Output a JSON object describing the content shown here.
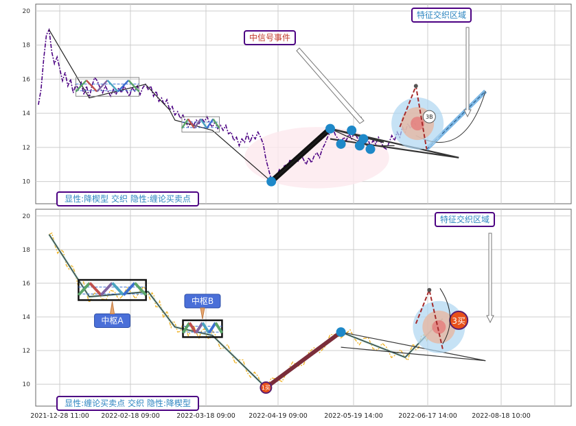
{
  "colors": {
    "panel_border": "#666666",
    "grid": "#cccccc",
    "top_price": "#4b0082",
    "bottom_price": "#f0b429",
    "stroke_line": "#222222",
    "node_blue": "#1e88c8",
    "label_border": "#4b0082",
    "label_text": "#2e86c1",
    "label_text_red": "#c0392b",
    "pivot_fill": "#4a6fd8",
    "buy_fill": "#e8501a",
    "dash_red": "#a52a2a"
  },
  "chart_data": [
    {
      "type": "line",
      "panel": "top",
      "ylim": [
        8.7,
        20.4
      ],
      "yticks": [
        "10",
        "12",
        "14",
        "16",
        "18",
        "20"
      ],
      "xlim": [
        0,
        100
      ],
      "price_series": [
        [
          0.5,
          14.5
        ],
        [
          1,
          15.4
        ],
        [
          1.5,
          17.2
        ],
        [
          2,
          18.6
        ],
        [
          2.5,
          18.9
        ],
        [
          3,
          17.6
        ],
        [
          3.5,
          16.9
        ],
        [
          4,
          17.3
        ],
        [
          4.5,
          16.6
        ],
        [
          5,
          15.9
        ],
        [
          5.5,
          16.4
        ],
        [
          6,
          15.6
        ],
        [
          6.5,
          16.0
        ],
        [
          7,
          15.2
        ],
        [
          7.5,
          15.7
        ],
        [
          8,
          15.4
        ],
        [
          8.5,
          15.8
        ],
        [
          9,
          15.1
        ],
        [
          9.5,
          15.6
        ],
        [
          10,
          14.9
        ],
        [
          10.5,
          15.6
        ],
        [
          11,
          16.1
        ],
        [
          11.5,
          15.9
        ],
        [
          12,
          15.5
        ],
        [
          12.5,
          15.2
        ],
        [
          13,
          15.6
        ],
        [
          13.5,
          15.3
        ],
        [
          14,
          15.0
        ],
        [
          14.5,
          15.4
        ],
        [
          15,
          15.1
        ],
        [
          15.5,
          15.5
        ],
        [
          16,
          15.2
        ],
        [
          16.5,
          15.6
        ],
        [
          17,
          15.3
        ],
        [
          17.5,
          15.0
        ],
        [
          18,
          15.5
        ],
        [
          18.5,
          15.3
        ],
        [
          19,
          15.6
        ],
        [
          19.5,
          15.1
        ],
        [
          20,
          15.5
        ],
        [
          20.5,
          15.7
        ],
        [
          21,
          15.4
        ],
        [
          21.5,
          15.6
        ],
        [
          22,
          15.0
        ],
        [
          22.5,
          15.3
        ],
        [
          23,
          14.7
        ],
        [
          23.5,
          14.9
        ],
        [
          24,
          14.5
        ],
        [
          24.5,
          14.8
        ],
        [
          25,
          14.2
        ],
        [
          25.5,
          14.4
        ],
        [
          26,
          13.9
        ],
        [
          26.5,
          14.1
        ],
        [
          27,
          13.7
        ],
        [
          27.5,
          13.9
        ],
        [
          28,
          13.5
        ],
        [
          28.5,
          13.2
        ],
        [
          29,
          13.5
        ],
        [
          29.5,
          13.3
        ],
        [
          30,
          13.6
        ],
        [
          30.5,
          13.4
        ],
        [
          31,
          13.7
        ],
        [
          31.5,
          13.5
        ],
        [
          32,
          13.8
        ],
        [
          32.5,
          13.4
        ],
        [
          33,
          13.2
        ],
        [
          33.5,
          13.5
        ],
        [
          34,
          13.1
        ],
        [
          34.5,
          13.3
        ],
        [
          35,
          13.0
        ],
        [
          35.5,
          13.3
        ],
        [
          36,
          12.8
        ],
        [
          36.5,
          12.9
        ],
        [
          37,
          12.4
        ],
        [
          37.5,
          12.6
        ],
        [
          38,
          12.1
        ],
        [
          38.5,
          12.5
        ],
        [
          39,
          12.3
        ],
        [
          39.5,
          12.8
        ],
        [
          40,
          12.3
        ],
        [
          40.5,
          12.7
        ],
        [
          41,
          12.5
        ],
        [
          41.5,
          12.9
        ],
        [
          42,
          12.6
        ],
        [
          42.5,
          12.2
        ],
        [
          43,
          11.3
        ],
        [
          43.5,
          10.7
        ],
        [
          44,
          10.1
        ],
        [
          44.5,
          9.95
        ],
        [
          45,
          10.3
        ],
        [
          45.5,
          10.7
        ],
        [
          46,
          10.5
        ],
        [
          46.5,
          11.0
        ],
        [
          47,
          10.8
        ],
        [
          47.5,
          11.3
        ],
        [
          48,
          11.0
        ],
        [
          48.5,
          11.4
        ],
        [
          49,
          11.2
        ],
        [
          49.5,
          11.6
        ],
        [
          50,
          11.3
        ],
        [
          50.5,
          11.0
        ],
        [
          51,
          11.4
        ],
        [
          51.5,
          11.1
        ],
        [
          52,
          11.5
        ],
        [
          52.5,
          11.7
        ],
        [
          53,
          11.4
        ],
        [
          53.5,
          11.9
        ],
        [
          54,
          12.2
        ],
        [
          54.5,
          12.6
        ],
        [
          55,
          12.9
        ],
        [
          55.5,
          13.1
        ],
        [
          56,
          12.7
        ],
        [
          56.5,
          12.5
        ],
        [
          57,
          12.2
        ],
        [
          57.5,
          12.6
        ],
        [
          58,
          12.4
        ],
        [
          58.5,
          12.8
        ],
        [
          59,
          12.5
        ],
        [
          59.5,
          12.9
        ],
        [
          60,
          12.6
        ],
        [
          60.5,
          12.3
        ],
        [
          61,
          12.7
        ],
        [
          61.5,
          12.2
        ],
        [
          62,
          12.5
        ],
        [
          62.5,
          12.1
        ],
        [
          63,
          12.4
        ],
        [
          63.5,
          12.2
        ],
        [
          64,
          12.6
        ],
        [
          64.5,
          12.3
        ],
        [
          65,
          12.0
        ],
        [
          65.5,
          11.9
        ],
        [
          66,
          12.3
        ],
        [
          66.5,
          12.7
        ],
        [
          67,
          12.4
        ],
        [
          67.5,
          12.9
        ],
        [
          68,
          12.6
        ],
        [
          68.5,
          13.2
        ],
        [
          69,
          12.9
        ],
        [
          69.5,
          13.4
        ],
        [
          70,
          13.1
        ],
        [
          70.5,
          13.6
        ],
        [
          71,
          13.3
        ]
      ],
      "stroke_points": [
        [
          2.5,
          18.9
        ],
        [
          10,
          14.9
        ],
        [
          20.5,
          15.7
        ],
        [
          25,
          14.2
        ],
        [
          26,
          13.6
        ],
        [
          33,
          13.0
        ],
        [
          44,
          10.0
        ],
        [
          55,
          13.1
        ],
        [
          62,
          12.1
        ],
        [
          67,
          12.1
        ]
      ],
      "pivots": [
        {
          "x0": 7.5,
          "x1": 19.3,
          "y0": 15.0,
          "y1": 16.1
        },
        {
          "x0": 27.3,
          "x1": 34.3,
          "y0": 12.9,
          "y1": 13.8
        }
      ],
      "bold_segment": [
        [
          44,
          10.0
        ],
        [
          55,
          13.1
        ]
      ],
      "nodes": [
        [
          44,
          10.0
        ],
        [
          55,
          13.1
        ],
        [
          57,
          12.2
        ],
        [
          59,
          13.0
        ],
        [
          60.5,
          12.1
        ],
        [
          61.2,
          12.5
        ],
        [
          62.5,
          11.9
        ]
      ],
      "wedge_lines": [
        [
          [
            55,
            13.1
          ],
          [
            79,
            11.4
          ]
        ],
        [
          [
            55,
            12.5
          ],
          [
            79,
            11.4
          ]
        ],
        [
          [
            55,
            13.1
          ],
          [
            65,
            12.3
          ]
        ]
      ],
      "dashed_red": [
        [
          68,
          13.2
        ],
        [
          71,
          15.6
        ],
        [
          73,
          11.9
        ]
      ],
      "blue_band": [
        [
          73,
          11.9
        ],
        [
          84,
          15.3
        ]
      ],
      "ellipse": {
        "cx": 52.5,
        "cy": 11.4,
        "rx": 13.5,
        "ry": 1.8
      },
      "circle_target": {
        "cx": 71.3,
        "cy": 13.4
      },
      "label_3B": "3B",
      "labels": {
        "mid_signal": "中信号事件",
        "feature_zone": "特征交织区域",
        "bottom_left": "显性:降楔型 交织 隐性:缠论买卖点"
      }
    },
    {
      "type": "line",
      "panel": "bottom",
      "ylim": [
        8.7,
        20.4
      ],
      "yticks": [
        "10",
        "12",
        "14",
        "16",
        "18",
        "20"
      ],
      "xlim": [
        0,
        100
      ],
      "xtick_labels": [
        "2021-12-28 11:00",
        "2022-02-18 09:00",
        "2022-03-18 09:00",
        "2022-04-19 09:00",
        "2022-05-19 14:00",
        "2022-06-17 14:00",
        "2022-08-18 10:00"
      ],
      "stroke_points": [
        [
          2.5,
          18.9
        ],
        [
          10,
          15.2
        ],
        [
          21,
          15.5
        ],
        [
          26,
          13.4
        ],
        [
          33,
          12.9
        ],
        [
          43,
          9.8
        ],
        [
          57,
          13.1
        ],
        [
          69,
          11.6
        ],
        [
          76,
          13.9
        ]
      ],
      "pivots": [
        {
          "x0": 8.0,
          "x1": 20.6,
          "y0": 15.0,
          "y1": 16.2,
          "label": "中枢A"
        },
        {
          "x0": 27.5,
          "x1": 34.8,
          "y0": 12.8,
          "y1": 13.8,
          "label": "中枢B"
        }
      ],
      "nodes": [
        [
          57,
          13.1
        ]
      ],
      "start_node": {
        "x": 43,
        "y": 9.8,
        "label": "1买"
      },
      "buy3_node": {
        "x": 79,
        "y": 13.8,
        "label": "3买"
      },
      "wedge_lines": [
        [
          [
            57,
            13.1
          ],
          [
            84,
            11.4
          ]
        ],
        [
          [
            57,
            12.2
          ],
          [
            84,
            11.4
          ]
        ]
      ],
      "dashed_red": [
        [
          71,
          13.6
        ],
        [
          73.5,
          15.6
        ],
        [
          76,
          12.1
        ]
      ],
      "circle_target": {
        "cx": 75.3,
        "cy": 13.4
      },
      "labels": {
        "feature_zone": "特征交织区域",
        "bottom_left": "显性:缠论买卖点 交织 隐性:降楔型"
      }
    }
  ]
}
